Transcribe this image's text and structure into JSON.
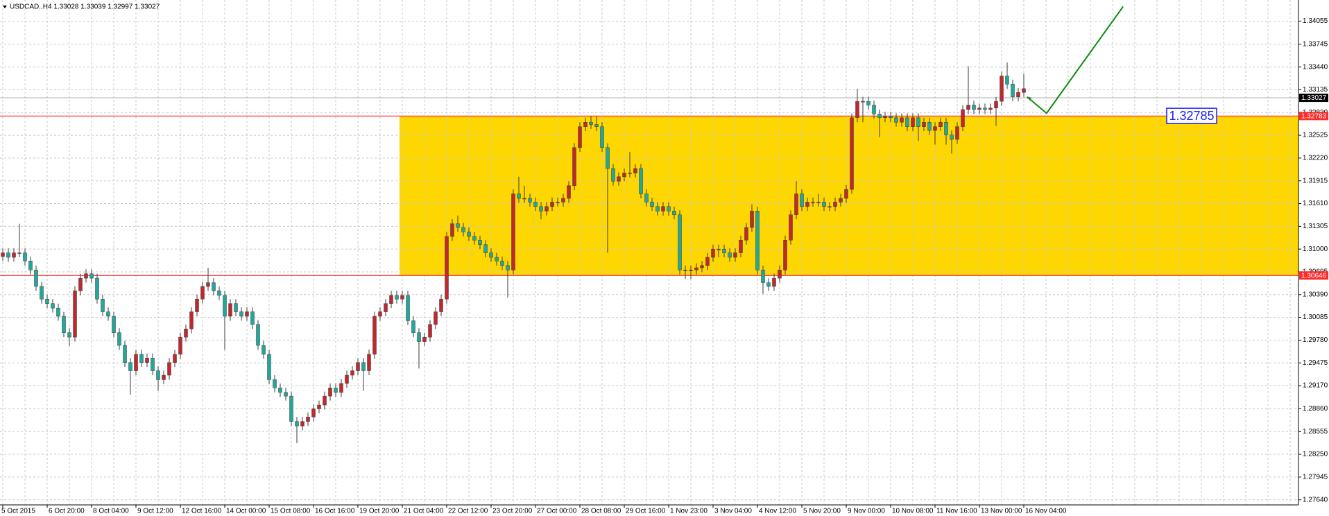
{
  "chart_data": {
    "type": "candlestick",
    "title": "USDCAD..H4  1.33028 1.33039 1.32997 1.33027",
    "x_labels": [
      "5 Oct 2015",
      "6 Oct 20:00",
      "8 Oct 04:00",
      "9 Oct 12:00",
      "12 Oct 16:00",
      "14 Oct 00:00",
      "15 Oct 08:00",
      "16 Oct 16:00",
      "19 Oct 20:00",
      "21 Oct 04:00",
      "22 Oct 12:00",
      "23 Oct 20:00",
      "27 Oct 00:00",
      "28 Oct 08:00",
      "29 Oct 16:00",
      "1 Nov 23:00",
      "3 Nov 04:00",
      "4 Nov 12:00",
      "5 Nov 20:00",
      "9 Nov 00:00",
      "10 Nov 08:00",
      "11 Nov 16:00",
      "13 Nov 00:00",
      "16 Nov 04:00"
    ],
    "candles": [
      [
        1.309,
        1.3101,
        1.3084,
        1.3095
      ],
      [
        1.3095,
        1.3101,
        1.3083,
        1.3089
      ],
      [
        1.3089,
        1.3101,
        1.3083,
        1.3095
      ],
      [
        1.3095,
        1.3134,
        1.3089,
        1.3095
      ],
      [
        1.3095,
        1.3101,
        1.3078,
        1.3084
      ],
      [
        1.3084,
        1.309,
        1.3066,
        1.3072
      ],
      [
        1.3072,
        1.3078,
        1.3044,
        1.305
      ],
      [
        1.305,
        1.3056,
        1.3027,
        1.3033
      ],
      [
        1.3033,
        1.3039,
        1.3021,
        1.3027
      ],
      [
        1.3027,
        1.3033,
        1.3015,
        1.3021
      ],
      [
        1.3021,
        1.3027,
        1.3004,
        1.301
      ],
      [
        1.301,
        1.3016,
        1.2982,
        1.2988
      ],
      [
        1.2988,
        1.2994,
        1.297,
        1.2982
      ],
      [
        1.2982,
        1.305,
        1.2976,
        1.3044
      ],
      [
        1.3044,
        1.3067,
        1.3038,
        1.3061
      ],
      [
        1.3061,
        1.3073,
        1.3055,
        1.3067
      ],
      [
        1.3067,
        1.3073,
        1.3055,
        1.3061
      ],
      [
        1.3061,
        1.3067,
        1.3027,
        1.3033
      ],
      [
        1.3033,
        1.3039,
        1.301,
        1.3016
      ],
      [
        1.3016,
        1.3022,
        1.3004,
        1.301
      ],
      [
        1.301,
        1.3016,
        1.2982,
        1.2988
      ],
      [
        1.2988,
        1.2994,
        1.2965,
        1.2971
      ],
      [
        1.2971,
        1.2977,
        1.2942,
        1.2948
      ],
      [
        1.2948,
        1.2954,
        1.2905,
        1.2937
      ],
      [
        1.2937,
        1.2965,
        1.2931,
        1.2959
      ],
      [
        1.2959,
        1.2965,
        1.2942,
        1.2948
      ],
      [
        1.2948,
        1.296,
        1.2942,
        1.2954
      ],
      [
        1.2954,
        1.296,
        1.2931,
        1.2937
      ],
      [
        1.2937,
        1.2943,
        1.291,
        1.2925
      ],
      [
        1.2925,
        1.2937,
        1.2919,
        1.2931
      ],
      [
        1.2931,
        1.2954,
        1.2925,
        1.2948
      ],
      [
        1.2948,
        1.2965,
        1.2942,
        1.2959
      ],
      [
        1.2959,
        1.2988,
        1.2953,
        1.2982
      ],
      [
        1.2982,
        1.2999,
        1.2976,
        1.2993
      ],
      [
        1.2993,
        1.3022,
        1.2987,
        1.3016
      ],
      [
        1.3016,
        1.3039,
        1.301,
        1.3033
      ],
      [
        1.3033,
        1.3056,
        1.3027,
        1.305
      ],
      [
        1.305,
        1.3075,
        1.3044,
        1.3055
      ],
      [
        1.3055,
        1.3061,
        1.3038,
        1.3044
      ],
      [
        1.3044,
        1.305,
        1.3032,
        1.3038
      ],
      [
        1.3038,
        1.3044,
        1.2965,
        1.301
      ],
      [
        1.301,
        1.3033,
        1.3004,
        1.3027
      ],
      [
        1.3027,
        1.3033,
        1.301,
        1.3016
      ],
      [
        1.3016,
        1.3022,
        1.3004,
        1.301
      ],
      [
        1.301,
        1.3022,
        1.3004,
        1.3016
      ],
      [
        1.3016,
        1.3022,
        1.2993,
        1.2999
      ],
      [
        1.2999,
        1.3005,
        1.2965,
        1.2971
      ],
      [
        1.2971,
        1.2977,
        1.2953,
        1.2959
      ],
      [
        1.2959,
        1.2965,
        1.2919,
        1.2925
      ],
      [
        1.2925,
        1.2931,
        1.2908,
        1.2914
      ],
      [
        1.2914,
        1.292,
        1.2902,
        1.2908
      ],
      [
        1.2908,
        1.2914,
        1.2897,
        1.2903
      ],
      [
        1.2903,
        1.2909,
        1.2863,
        1.2869
      ],
      [
        1.2869,
        1.2875,
        1.284,
        1.2863
      ],
      [
        1.2863,
        1.2875,
        1.2857,
        1.2869
      ],
      [
        1.2869,
        1.2881,
        1.2863,
        1.2875
      ],
      [
        1.2875,
        1.2892,
        1.2869,
        1.2886
      ],
      [
        1.2886,
        1.2897,
        1.288,
        1.2891
      ],
      [
        1.2891,
        1.2909,
        1.2885,
        1.2903
      ],
      [
        1.2903,
        1.292,
        1.2897,
        1.2914
      ],
      [
        1.2914,
        1.292,
        1.2902,
        1.2908
      ],
      [
        1.2908,
        1.2926,
        1.2902,
        1.292
      ],
      [
        1.292,
        1.2937,
        1.2914,
        1.2931
      ],
      [
        1.2931,
        1.2943,
        1.2925,
        1.2937
      ],
      [
        1.2937,
        1.2954,
        1.2931,
        1.2948
      ],
      [
        1.2948,
        1.2954,
        1.291,
        1.2937
      ],
      [
        1.2937,
        1.2965,
        1.2931,
        1.2959
      ],
      [
        1.2959,
        1.3016,
        1.2953,
        1.301
      ],
      [
        1.301,
        1.3022,
        1.3004,
        1.3016
      ],
      [
        1.3016,
        1.3033,
        1.301,
        1.3027
      ],
      [
        1.3027,
        1.3044,
        1.3021,
        1.3038
      ],
      [
        1.3038,
        1.3044,
        1.3027,
        1.3033
      ],
      [
        1.3033,
        1.3044,
        1.3027,
        1.3038
      ],
      [
        1.3038,
        1.3044,
        1.2998,
        1.3004
      ],
      [
        1.3004,
        1.301,
        1.2982,
        1.2988
      ],
      [
        1.2988,
        1.2994,
        1.294,
        1.2976
      ],
      [
        1.2976,
        1.2988,
        1.297,
        1.2982
      ],
      [
        1.2982,
        1.3005,
        1.2976,
        1.2999
      ],
      [
        1.2999,
        1.3022,
        1.2993,
        1.3016
      ],
      [
        1.3016,
        1.3039,
        1.301,
        1.3033
      ],
      [
        1.3033,
        1.3123,
        1.3027,
        1.3117
      ],
      [
        1.3117,
        1.314,
        1.3111,
        1.3134
      ],
      [
        1.3134,
        1.3145,
        1.3123,
        1.3129
      ],
      [
        1.3129,
        1.3135,
        1.3117,
        1.3123
      ],
      [
        1.3123,
        1.3129,
        1.3111,
        1.3117
      ],
      [
        1.3117,
        1.3123,
        1.3106,
        1.3112
      ],
      [
        1.3112,
        1.3118,
        1.31,
        1.3106
      ],
      [
        1.3106,
        1.3112,
        1.3089,
        1.3095
      ],
      [
        1.3095,
        1.3101,
        1.3083,
        1.3089
      ],
      [
        1.3089,
        1.3095,
        1.3078,
        1.3084
      ],
      [
        1.3084,
        1.309,
        1.3072,
        1.3078
      ],
      [
        1.3078,
        1.3084,
        1.3035,
        1.3072
      ],
      [
        1.3072,
        1.318,
        1.3066,
        1.3174
      ],
      [
        1.3174,
        1.3197,
        1.3162,
        1.3168
      ],
      [
        1.3168,
        1.3185,
        1.3162,
        1.3168
      ],
      [
        1.3168,
        1.3174,
        1.3157,
        1.3163
      ],
      [
        1.3163,
        1.3169,
        1.3151,
        1.3157
      ],
      [
        1.3157,
        1.3163,
        1.314,
        1.3151
      ],
      [
        1.3151,
        1.3163,
        1.3145,
        1.3157
      ],
      [
        1.3157,
        1.3169,
        1.3151,
        1.3163
      ],
      [
        1.3163,
        1.3169,
        1.3157,
        1.3163
      ],
      [
        1.3163,
        1.3174,
        1.3157,
        1.3168
      ],
      [
        1.3168,
        1.3191,
        1.3162,
        1.3185
      ],
      [
        1.3185,
        1.3242,
        1.3179,
        1.3236
      ],
      [
        1.3236,
        1.327,
        1.323,
        1.3264
      ],
      [
        1.3264,
        1.3276,
        1.3258,
        1.327
      ],
      [
        1.327,
        1.3278,
        1.3261,
        1.3267
      ],
      [
        1.3267,
        1.3278,
        1.3258,
        1.3264
      ],
      [
        1.3264,
        1.327,
        1.323,
        1.3236
      ],
      [
        1.3236,
        1.3242,
        1.3095,
        1.3208
      ],
      [
        1.3208,
        1.3214,
        1.3185,
        1.3191
      ],
      [
        1.3191,
        1.3203,
        1.3185,
        1.3197
      ],
      [
        1.3197,
        1.3208,
        1.3191,
        1.3202
      ],
      [
        1.3202,
        1.323,
        1.3196,
        1.3202
      ],
      [
        1.3202,
        1.3214,
        1.3196,
        1.3208
      ],
      [
        1.3208,
        1.3214,
        1.3168,
        1.3174
      ],
      [
        1.3174,
        1.318,
        1.3157,
        1.3163
      ],
      [
        1.3163,
        1.3169,
        1.3151,
        1.3157
      ],
      [
        1.3157,
        1.3163,
        1.3145,
        1.3151
      ],
      [
        1.3151,
        1.3163,
        1.3145,
        1.3157
      ],
      [
        1.3157,
        1.3163,
        1.3145,
        1.3151
      ],
      [
        1.3151,
        1.3157,
        1.314,
        1.3146
      ],
      [
        1.3146,
        1.3152,
        1.3066,
        1.3072
      ],
      [
        1.3072,
        1.3078,
        1.306,
        1.3072
      ],
      [
        1.3072,
        1.3078,
        1.306,
        1.3072
      ],
      [
        1.3072,
        1.3081,
        1.3066,
        1.3075
      ],
      [
        1.3075,
        1.3084,
        1.3069,
        1.3078
      ],
      [
        1.3078,
        1.3095,
        1.3072,
        1.3089
      ],
      [
        1.3089,
        1.3106,
        1.3083,
        1.31
      ],
      [
        1.31,
        1.3106,
        1.3089,
        1.31
      ],
      [
        1.31,
        1.3106,
        1.3089,
        1.3095
      ],
      [
        1.3095,
        1.3101,
        1.3083,
        1.3089
      ],
      [
        1.3089,
        1.3101,
        1.3083,
        1.3095
      ],
      [
        1.3095,
        1.3118,
        1.3089,
        1.3112
      ],
      [
        1.3112,
        1.3135,
        1.3106,
        1.3129
      ],
      [
        1.3129,
        1.316,
        1.3123,
        1.3151
      ],
      [
        1.3151,
        1.3157,
        1.3066,
        1.3072
      ],
      [
        1.3072,
        1.3078,
        1.304,
        1.3055
      ],
      [
        1.3055,
        1.3061,
        1.3044,
        1.305
      ],
      [
        1.305,
        1.3067,
        1.3044,
        1.3061
      ],
      [
        1.3061,
        1.3078,
        1.3055,
        1.3072
      ],
      [
        1.3072,
        1.3118,
        1.3066,
        1.3112
      ],
      [
        1.3112,
        1.3152,
        1.3106,
        1.3146
      ],
      [
        1.3146,
        1.3191,
        1.314,
        1.3174
      ],
      [
        1.3174,
        1.318,
        1.3151,
        1.3157
      ],
      [
        1.3157,
        1.3169,
        1.3151,
        1.3163
      ],
      [
        1.3163,
        1.3169,
        1.3157,
        1.3163
      ],
      [
        1.3163,
        1.3174,
        1.3157,
        1.3163
      ],
      [
        1.3163,
        1.3169,
        1.3151,
        1.3157
      ],
      [
        1.3157,
        1.3163,
        1.3151,
        1.3157
      ],
      [
        1.3157,
        1.3169,
        1.3151,
        1.3163
      ],
      [
        1.3163,
        1.3174,
        1.3157,
        1.3168
      ],
      [
        1.3168,
        1.3186,
        1.3162,
        1.318
      ],
      [
        1.318,
        1.3282,
        1.3174,
        1.3276
      ],
      [
        1.3276,
        1.3315,
        1.327,
        1.3298
      ],
      [
        1.3298,
        1.3304,
        1.327,
        1.3298
      ],
      [
        1.3298,
        1.3304,
        1.3287,
        1.3293
      ],
      [
        1.3293,
        1.3299,
        1.3275,
        1.3281
      ],
      [
        1.3281,
        1.3287,
        1.325,
        1.3276
      ],
      [
        1.3276,
        1.3284,
        1.327,
        1.3278
      ],
      [
        1.3278,
        1.3284,
        1.327,
        1.3276
      ],
      [
        1.3276,
        1.3282,
        1.3264,
        1.327
      ],
      [
        1.327,
        1.3282,
        1.3264,
        1.3276
      ],
      [
        1.3276,
        1.3282,
        1.3258,
        1.3264
      ],
      [
        1.3264,
        1.3282,
        1.3258,
        1.3276
      ],
      [
        1.3276,
        1.3282,
        1.3245,
        1.3264
      ],
      [
        1.3264,
        1.3276,
        1.3258,
        1.327
      ],
      [
        1.327,
        1.3276,
        1.3253,
        1.3259
      ],
      [
        1.3259,
        1.327,
        1.324,
        1.3264
      ],
      [
        1.3264,
        1.3276,
        1.3258,
        1.327
      ],
      [
        1.327,
        1.3276,
        1.324,
        1.3253
      ],
      [
        1.3253,
        1.3259,
        1.3228,
        1.3247
      ],
      [
        1.3247,
        1.327,
        1.3241,
        1.3264
      ],
      [
        1.3264,
        1.3293,
        1.3258,
        1.3287
      ],
      [
        1.3287,
        1.3345,
        1.3281,
        1.3293
      ],
      [
        1.3293,
        1.3299,
        1.3281,
        1.3287
      ],
      [
        1.3287,
        1.3295,
        1.3281,
        1.3289
      ],
      [
        1.3289,
        1.3295,
        1.3281,
        1.3287
      ],
      [
        1.3287,
        1.3295,
        1.3281,
        1.3289
      ],
      [
        1.3289,
        1.3304,
        1.3265,
        1.3298
      ],
      [
        1.3298,
        1.3338,
        1.3292,
        1.3332
      ],
      [
        1.3332,
        1.335,
        1.3315,
        1.3321
      ],
      [
        1.3321,
        1.3327,
        1.3298,
        1.3304
      ],
      [
        1.3304,
        1.3316,
        1.3298,
        1.331
      ],
      [
        1.331,
        1.3335,
        1.3304,
        1.3315
      ],
      [
        1.33028,
        1.33039,
        1.32997,
        1.33027
      ]
    ],
    "bull_color": "#c0282d",
    "bear_color": "#22a89a",
    "wick_color": "#3a3a3a",
    "ylim": [
      1.27572,
      1.34338
    ],
    "yticks": [
      1.34055,
      1.33745,
      {
        "value": 1.3344,
        "label": "1.33440"
      },
      1.33135,
      {
        "value": 1.3283,
        "label": "1.32830"
      },
      1.32525,
      {
        "value": 1.3222,
        "label": "1.32220"
      },
      1.31915,
      {
        "value": 1.3161,
        "label": "1.31610"
      },
      1.31305,
      {
        "value": 1.31,
        "label": "1.31000"
      },
      1.30695,
      {
        "value": 1.3039,
        "label": "1.30390"
      },
      1.30085,
      {
        "value": 1.2978,
        "label": "1.29780"
      },
      1.29475,
      {
        "value": 1.2917,
        "label": "1.29170"
      },
      {
        "value": 1.2886,
        "label": "1.28860"
      },
      1.28555,
      {
        "value": 1.2825,
        "label": "1.28250"
      },
      1.27945,
      {
        "value": 1.2764,
        "label": "1.27640"
      }
    ],
    "grid": true,
    "hlines": [
      {
        "value": 1.32783,
        "label": "1.32783",
        "color": "#ff2a2a"
      },
      {
        "value": 1.30646,
        "label": "1.30646",
        "color": "#ff2a2a"
      }
    ],
    "zone_color": "#ffd700",
    "current_price": {
      "value": 1.33027,
      "label": "1.33027"
    },
    "price_label": {
      "value": 1.32785,
      "label": "1.32785",
      "color": "#1a1aff"
    },
    "projection": {
      "values": [
        1.3304,
        1.3282,
        1.3425
      ],
      "color": "#0a8a0a"
    }
  }
}
